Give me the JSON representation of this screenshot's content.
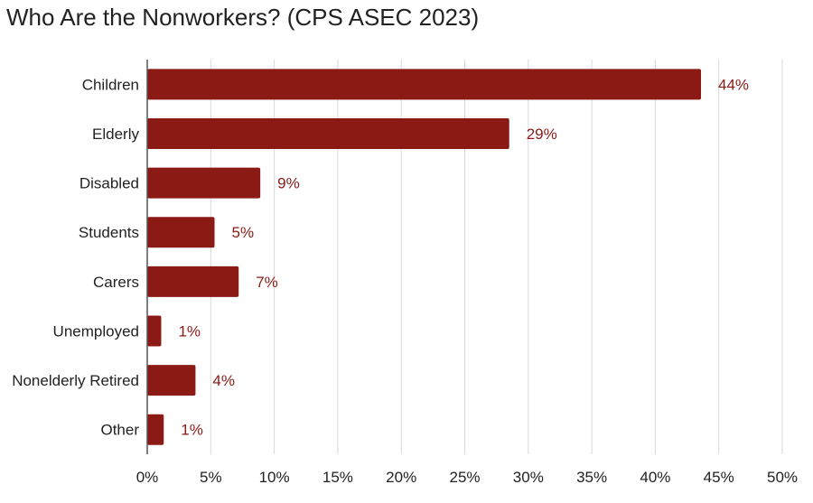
{
  "chart_data": {
    "type": "bar",
    "orientation": "horizontal",
    "title": "Who Are the Nonworkers? (CPS ASEC 2023)",
    "xlabel": "",
    "ylabel": "",
    "categories": [
      "Children",
      "Elderly",
      "Disabled",
      "Students",
      "Carers",
      "Unemployed",
      "Nonelderly Retired",
      "Other"
    ],
    "values": [
      43.6,
      28.5,
      8.9,
      5.3,
      7.2,
      1.1,
      3.8,
      1.3
    ],
    "data_labels": [
      "44%",
      "29%",
      "9%",
      "5%",
      "7%",
      "1%",
      "4%",
      "1%"
    ],
    "xlim": [
      0,
      50
    ],
    "x_ticks": [
      0,
      5,
      10,
      15,
      20,
      25,
      30,
      35,
      40,
      45,
      50
    ],
    "x_tick_labels": [
      "0%",
      "5%",
      "10%",
      "15%",
      "20%",
      "25%",
      "30%",
      "35%",
      "40%",
      "45%",
      "50%"
    ],
    "grid": "vertical",
    "legend": "none",
    "colors": {
      "bar": "#8b1a14",
      "label": "#8b1a14",
      "grid": "#d9d9d9",
      "axis": "#555555",
      "text": "#222222"
    }
  }
}
